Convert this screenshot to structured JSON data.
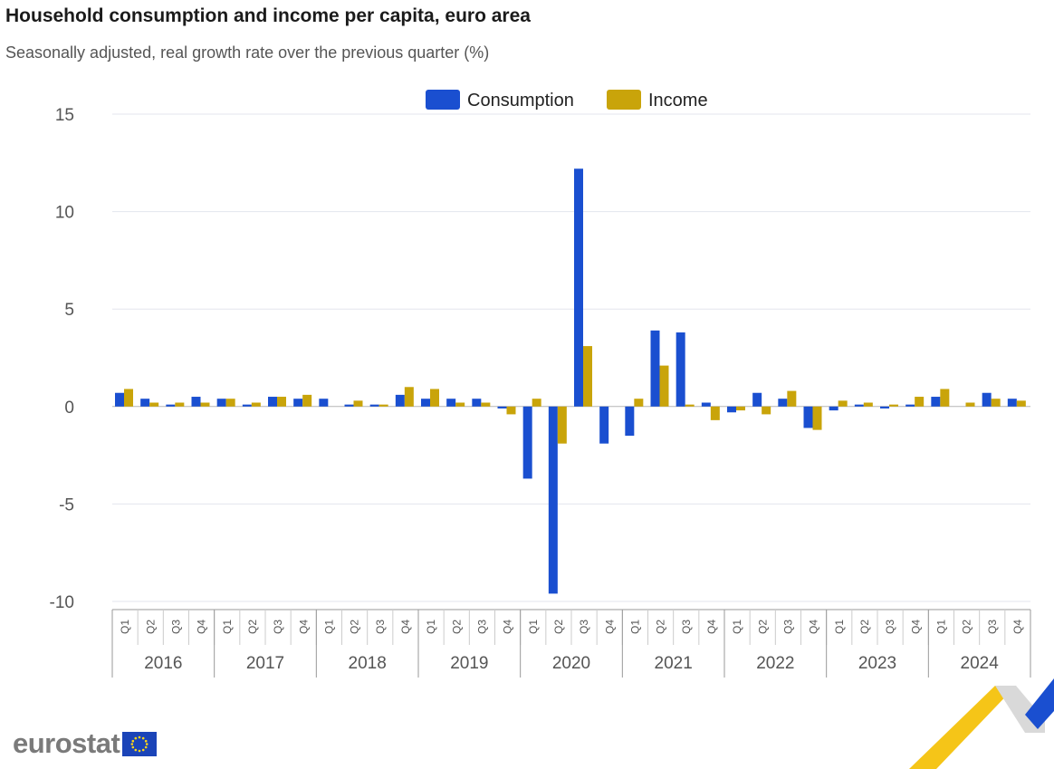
{
  "header": {
    "title": "Household consumption and income per capita, euro area",
    "subtitle": "Seasonally adjusted, real growth rate over the previous quarter (%)"
  },
  "branding": {
    "logo_text": "eurostat"
  },
  "chart_data": {
    "type": "bar",
    "title": "Household consumption and income per capita, euro area",
    "subtitle": "Seasonally adjusted, real growth rate over the previous quarter (%)",
    "xlabel": "",
    "ylabel": "",
    "ylim": [
      -10,
      15
    ],
    "yticks": [
      15,
      10,
      5,
      0,
      -5,
      -10
    ],
    "grid": true,
    "legend_position": "top-center",
    "quarters": [
      "Q1",
      "Q2",
      "Q3",
      "Q4"
    ],
    "years": [
      "2016",
      "2017",
      "2018",
      "2019",
      "2020",
      "2021",
      "2022",
      "2023",
      "2024"
    ],
    "series": [
      {
        "name": "Consumption",
        "color": "#1a4fd0",
        "values": [
          0.7,
          0.4,
          0.1,
          0.5,
          0.4,
          0.1,
          0.5,
          0.4,
          0.4,
          0.1,
          0.1,
          0.6,
          0.4,
          0.4,
          0.4,
          -0.1,
          -3.7,
          -9.6,
          12.2,
          -1.9,
          -1.5,
          3.9,
          3.8,
          0.2,
          -0.3,
          0.7,
          0.4,
          -1.1,
          -0.2,
          0.1,
          -0.1,
          0.1,
          0.5,
          0.0,
          0.7,
          0.4
        ]
      },
      {
        "name": "Income",
        "color": "#c9a40a",
        "values": [
          0.9,
          0.2,
          0.2,
          0.2,
          0.4,
          0.2,
          0.5,
          0.6,
          0.0,
          0.3,
          0.1,
          1.0,
          0.9,
          0.2,
          0.2,
          -0.4,
          0.4,
          -1.9,
          3.1,
          0.0,
          0.4,
          2.1,
          0.1,
          -0.7,
          -0.2,
          -0.4,
          0.8,
          -1.2,
          0.3,
          0.2,
          0.1,
          0.5,
          0.9,
          0.2,
          0.4,
          0.3
        ]
      }
    ]
  }
}
